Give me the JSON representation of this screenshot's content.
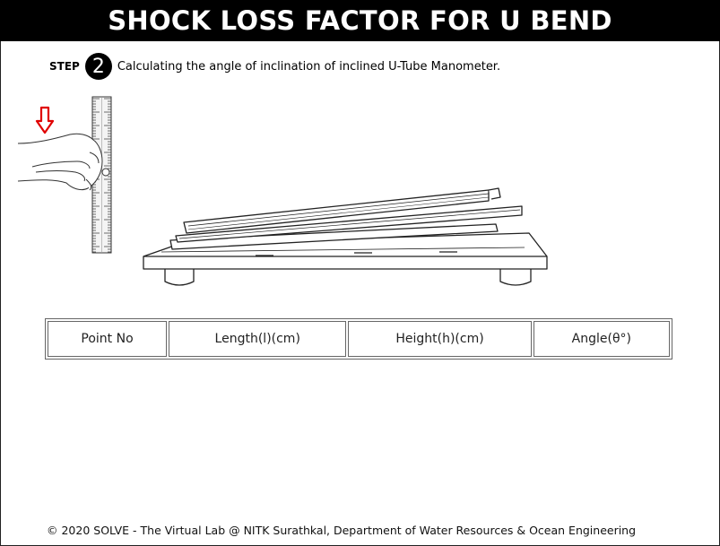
{
  "header": {
    "title": "SHOCK LOSS FACTOR FOR U BEND"
  },
  "step": {
    "label": "STEP",
    "number": "2",
    "instruction": "Calculating the angle of inclination of inclined U-Tube Manometer."
  },
  "illustration": {
    "arrow_color": "#e00000",
    "icons": [
      "down-arrow-icon",
      "hand-icon",
      "ruler",
      "inclined-manometer"
    ]
  },
  "table": {
    "headers": [
      "Point No",
      "Length(l)(cm)",
      "Height(h)(cm)",
      "Angle(θ°)"
    ]
  },
  "footer": {
    "text": "© 2020 SOLVE - The Virtual Lab @ NITK Surathkal, Department of Water Resources & Ocean Engineering"
  }
}
